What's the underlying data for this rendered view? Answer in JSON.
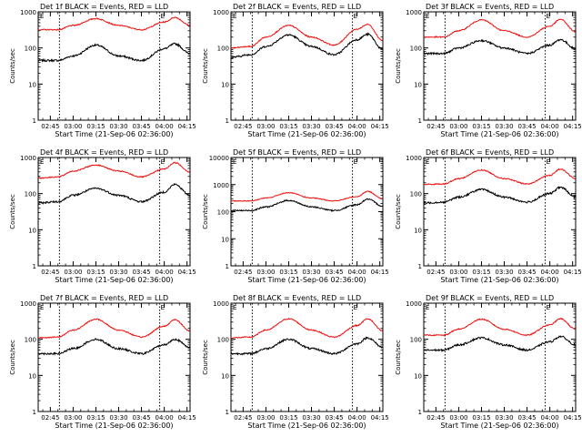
{
  "colors": {
    "events": "#000000",
    "lld": "#ee1111",
    "axis": "#000000"
  },
  "chart_data": [
    {
      "type": "line",
      "title": "Det 1f BLACK = Events, RED = LLD",
      "xlabel": "Start Time (21-Sep-06 02:36:00)",
      "ylabel": "Counts/sec",
      "yscale": "log",
      "ylim": [
        1,
        1000
      ],
      "xlim": [
        "02:37",
        "04:17"
      ],
      "xticks": [
        "02:45",
        "03:00",
        "03:15",
        "03:30",
        "03:45",
        "04:00",
        "04:15"
      ],
      "yticks": [
        "1",
        "10",
        "100",
        "1000"
      ],
      "markers": [
        "02:51",
        "03:57"
      ],
      "flag_label": "E",
      "series": [
        {
          "key": "events",
          "x": [
            "02:37",
            "02:50",
            "03:00",
            "03:15",
            "03:30",
            "03:45",
            "04:00",
            "04:07",
            "04:17"
          ],
          "y": [
            45,
            45,
            60,
            120,
            60,
            45,
            95,
            130,
            70
          ]
        },
        {
          "key": "lld",
          "x": [
            "02:37",
            "02:50",
            "03:00",
            "03:15",
            "03:30",
            "03:45",
            "04:00",
            "04:07",
            "04:17"
          ],
          "y": [
            320,
            320,
            420,
            650,
            420,
            320,
            520,
            700,
            420
          ]
        }
      ]
    },
    {
      "type": "line",
      "title": "Det 2f BLACK = Events, RED = LLD",
      "xlabel": "Start Time (21-Sep-06 02:36:00)",
      "ylabel": "Counts/sec",
      "yscale": "log",
      "ylim": [
        1,
        1000
      ],
      "xlim": [
        "02:37",
        "04:17"
      ],
      "xticks": [
        "02:45",
        "03:00",
        "03:15",
        "03:30",
        "03:45",
        "04:00",
        "04:15"
      ],
      "yticks": [
        "1",
        "10",
        "100",
        "1000"
      ],
      "markers": [
        "02:51",
        "03:57"
      ],
      "flag_label": "E",
      "series": [
        {
          "key": "events",
          "x": [
            "02:37",
            "02:50",
            "03:00",
            "03:15",
            "03:30",
            "03:45",
            "04:00",
            "04:07",
            "04:17"
          ],
          "y": [
            55,
            65,
            110,
            230,
            110,
            65,
            170,
            240,
            90
          ]
        },
        {
          "key": "lld",
          "x": [
            "02:37",
            "02:50",
            "03:00",
            "03:15",
            "03:30",
            "03:45",
            "04:00",
            "04:07",
            "04:17"
          ],
          "y": [
            100,
            110,
            200,
            420,
            200,
            120,
            330,
            450,
            160
          ]
        }
      ]
    },
    {
      "type": "line",
      "title": "Det 3f BLACK = Events, RED = LLD",
      "xlabel": "Start Time (21-Sep-06 02:36:00)",
      "ylabel": "Counts/sec",
      "yscale": "log",
      "ylim": [
        1,
        1000
      ],
      "xlim": [
        "02:37",
        "04:17"
      ],
      "xticks": [
        "02:45",
        "03:00",
        "03:15",
        "03:30",
        "03:45",
        "04:00",
        "04:15"
      ],
      "yticks": [
        "1",
        "10",
        "100",
        "1000"
      ],
      "markers": [
        "02:51",
        "03:57"
      ],
      "flag_label": "E",
      "series": [
        {
          "key": "events",
          "x": [
            "02:37",
            "02:50",
            "03:00",
            "03:15",
            "03:30",
            "03:45",
            "04:00",
            "04:07",
            "04:17"
          ],
          "y": [
            70,
            70,
            100,
            160,
            100,
            70,
            120,
            170,
            95
          ]
        },
        {
          "key": "lld",
          "x": [
            "02:37",
            "02:50",
            "03:00",
            "03:15",
            "03:30",
            "03:45",
            "04:00",
            "04:07",
            "04:17"
          ],
          "y": [
            200,
            200,
            300,
            600,
            300,
            200,
            400,
            620,
            280
          ]
        }
      ]
    },
    {
      "type": "line",
      "title": "Det 4f BLACK = Events, RED = LLD",
      "xlabel": "Start Time (21-Sep-06 02:36:00)",
      "ylabel": "Counts/sec",
      "yscale": "log",
      "ylim": [
        1,
        1000
      ],
      "xlim": [
        "02:37",
        "04:17"
      ],
      "xticks": [
        "02:45",
        "03:00",
        "03:15",
        "03:30",
        "03:45",
        "04:00",
        "04:15"
      ],
      "yticks": [
        "1",
        "10",
        "100",
        "1000"
      ],
      "markers": [
        "02:51",
        "03:57"
      ],
      "flag_label": "E",
      "series": [
        {
          "key": "events",
          "x": [
            "02:37",
            "02:50",
            "03:00",
            "03:15",
            "03:30",
            "03:45",
            "04:00",
            "04:07",
            "04:17"
          ],
          "y": [
            55,
            60,
            90,
            140,
            90,
            60,
            110,
            180,
            90
          ]
        },
        {
          "key": "lld",
          "x": [
            "02:37",
            "02:50",
            "03:00",
            "03:15",
            "03:30",
            "03:45",
            "04:00",
            "04:07",
            "04:17"
          ],
          "y": [
            270,
            290,
            420,
            620,
            420,
            290,
            480,
            720,
            400
          ]
        }
      ]
    },
    {
      "type": "line",
      "title": "Det 5f BLACK = Events, RED = LLD",
      "xlabel": "Start Time (21-Sep-06 02:36:00)",
      "ylabel": "Counts/sec",
      "yscale": "log",
      "ylim": [
        1,
        10000
      ],
      "xlim": [
        "02:37",
        "04:17"
      ],
      "xticks": [
        "02:45",
        "03:00",
        "03:15",
        "03:30",
        "03:45",
        "04:00",
        "04:15"
      ],
      "yticks": [
        "1",
        "10",
        "100",
        "1000",
        "10000"
      ],
      "markers": [
        "02:51",
        "03:57"
      ],
      "flag_label": "E",
      "series": [
        {
          "key": "events",
          "x": [
            "02:37",
            "02:50",
            "03:00",
            "03:15",
            "03:30",
            "03:45",
            "04:00",
            "04:07",
            "04:17"
          ],
          "y": [
            110,
            110,
            150,
            260,
            150,
            110,
            180,
            290,
            160
          ]
        },
        {
          "key": "lld",
          "x": [
            "02:37",
            "02:50",
            "03:00",
            "03:15",
            "03:30",
            "03:45",
            "04:00",
            "04:07",
            "04:17"
          ],
          "y": [
            250,
            250,
            320,
            500,
            320,
            250,
            360,
            560,
            300
          ]
        }
      ]
    },
    {
      "type": "line",
      "title": "Det 6f BLACK = Events, RED = LLD",
      "xlabel": "Start Time (21-Sep-06 02:36:00)",
      "ylabel": "Counts/sec",
      "yscale": "log",
      "ylim": [
        1,
        1000
      ],
      "xlim": [
        "02:37",
        "04:17"
      ],
      "xticks": [
        "02:45",
        "03:00",
        "03:15",
        "03:30",
        "03:45",
        "04:00",
        "04:15"
      ],
      "yticks": [
        "1",
        "10",
        "100",
        "1000"
      ],
      "markers": [
        "02:51",
        "03:57"
      ],
      "flag_label": "E",
      "series": [
        {
          "key": "events",
          "x": [
            "02:37",
            "02:50",
            "03:00",
            "03:15",
            "03:30",
            "03:45",
            "04:00",
            "04:07",
            "04:17"
          ],
          "y": [
            55,
            58,
            80,
            130,
            80,
            58,
            100,
            150,
            80
          ]
        },
        {
          "key": "lld",
          "x": [
            "02:37",
            "02:50",
            "03:00",
            "03:15",
            "03:30",
            "03:45",
            "04:00",
            "04:07",
            "04:17"
          ],
          "y": [
            180,
            185,
            260,
            450,
            260,
            185,
            320,
            480,
            260
          ]
        }
      ]
    },
    {
      "type": "line",
      "title": "Det 7f BLACK = Events, RED = LLD",
      "xlabel": "Start Time (21-Sep-06 02:36:00)",
      "ylabel": "Counts/sec",
      "yscale": "log",
      "ylim": [
        1,
        1000
      ],
      "xlim": [
        "02:37",
        "04:17"
      ],
      "xticks": [
        "02:45",
        "03:00",
        "03:15",
        "03:30",
        "03:45",
        "04:00",
        "04:15"
      ],
      "yticks": [
        "1",
        "10",
        "100",
        "1000"
      ],
      "markers": [
        "02:51",
        "03:57"
      ],
      "flag_label": "E",
      "series": [
        {
          "key": "events",
          "x": [
            "02:37",
            "02:50",
            "03:00",
            "03:15",
            "03:30",
            "03:45",
            "04:00",
            "04:07",
            "04:17"
          ],
          "y": [
            40,
            40,
            55,
            100,
            55,
            40,
            70,
            100,
            60
          ]
        },
        {
          "key": "lld",
          "x": [
            "02:37",
            "02:50",
            "03:00",
            "03:15",
            "03:30",
            "03:45",
            "04:00",
            "04:07",
            "04:17"
          ],
          "y": [
            110,
            115,
            180,
            360,
            180,
            115,
            230,
            350,
            170
          ]
        }
      ]
    },
    {
      "type": "line",
      "title": "Det 8f BLACK = Events, RED = LLD",
      "xlabel": "Start Time (21-Sep-06 02:36:00)",
      "ylabel": "Counts/sec",
      "yscale": "log",
      "ylim": [
        1,
        1000
      ],
      "xlim": [
        "02:37",
        "04:17"
      ],
      "xticks": [
        "02:45",
        "03:00",
        "03:15",
        "03:30",
        "03:45",
        "04:00",
        "04:15"
      ],
      "yticks": [
        "1",
        "10",
        "100",
        "1000"
      ],
      "markers": [
        "02:51",
        "03:57"
      ],
      "flag_label": "E",
      "series": [
        {
          "key": "events",
          "x": [
            "02:37",
            "02:50",
            "03:00",
            "03:15",
            "03:30",
            "03:45",
            "04:00",
            "04:07",
            "04:17"
          ],
          "y": [
            40,
            40,
            55,
            100,
            55,
            40,
            75,
            110,
            60
          ]
        },
        {
          "key": "lld",
          "x": [
            "02:37",
            "02:50",
            "03:00",
            "03:15",
            "03:30",
            "03:45",
            "04:00",
            "04:07",
            "04:17"
          ],
          "y": [
            110,
            115,
            180,
            370,
            180,
            115,
            240,
            370,
            170
          ]
        }
      ]
    },
    {
      "type": "line",
      "title": "Det 9f BLACK = Events, RED = LLD",
      "xlabel": "Start Time (21-Sep-06 02:36:00)",
      "ylabel": "Counts/sec",
      "yscale": "log",
      "ylim": [
        1,
        1000
      ],
      "xlim": [
        "02:37",
        "04:17"
      ],
      "xticks": [
        "02:45",
        "03:00",
        "03:15",
        "03:30",
        "03:45",
        "04:00",
        "04:15"
      ],
      "yticks": [
        "1",
        "10",
        "100",
        "1000"
      ],
      "markers": [
        "02:51",
        "03:57"
      ],
      "flag_label": "E",
      "series": [
        {
          "key": "events",
          "x": [
            "02:37",
            "02:50",
            "03:00",
            "03:15",
            "03:30",
            "03:45",
            "04:00",
            "04:07",
            "04:17"
          ],
          "y": [
            50,
            50,
            70,
            110,
            70,
            50,
            85,
            120,
            70
          ]
        },
        {
          "key": "lld",
          "x": [
            "02:37",
            "02:50",
            "03:00",
            "03:15",
            "03:30",
            "03:45",
            "04:00",
            "04:07",
            "04:17"
          ],
          "y": [
            130,
            130,
            190,
            360,
            190,
            130,
            250,
            370,
            190
          ]
        }
      ]
    }
  ]
}
